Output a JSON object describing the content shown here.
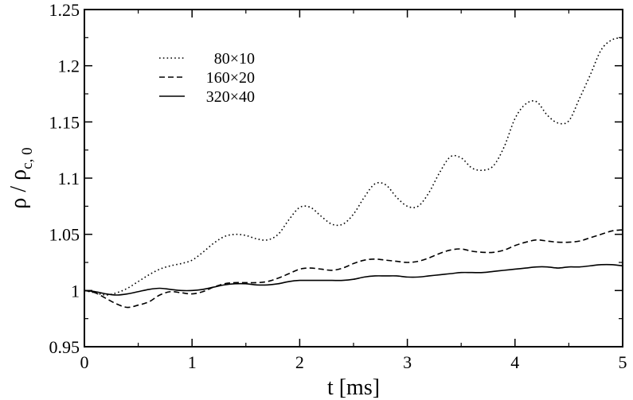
{
  "chart_data": {
    "type": "line",
    "xlabel": "t [ms]",
    "ylabel": "ρ / ρc, 0",
    "ylabel_main": "ρ / ρ",
    "ylabel_sub": "c, 0",
    "xlim": [
      0,
      5
    ],
    "ylim": [
      0.95,
      1.25
    ],
    "x_ticks": [
      0,
      1,
      2,
      3,
      4,
      5
    ],
    "x_tick_labels": [
      "0",
      "1",
      "2",
      "3",
      "4",
      "5"
    ],
    "y_ticks": [
      0.95,
      1,
      1.05,
      1.1,
      1.15,
      1.2,
      1.25
    ],
    "y_tick_labels": [
      "0.95",
      "1",
      "1.05",
      "1.1",
      "1.15",
      "1.2",
      "1.25"
    ],
    "grid": false,
    "legend_position": "top-left",
    "series": [
      {
        "name": "80×10",
        "style": "dotted",
        "color": "#000000",
        "x": [
          0,
          0.1,
          0.2,
          0.3,
          0.4,
          0.5,
          0.6,
          0.7,
          0.8,
          0.9,
          1.0,
          1.1,
          1.2,
          1.3,
          1.4,
          1.5,
          1.6,
          1.7,
          1.8,
          1.9,
          2.0,
          2.1,
          2.2,
          2.3,
          2.4,
          2.5,
          2.6,
          2.7,
          2.8,
          2.9,
          3.0,
          3.1,
          3.2,
          3.3,
          3.4,
          3.5,
          3.6,
          3.7,
          3.8,
          3.9,
          4.0,
          4.1,
          4.2,
          4.3,
          4.4,
          4.5,
          4.6,
          4.7,
          4.8,
          4.9,
          5.0
        ],
        "y": [
          1.0,
          0.998,
          0.996,
          0.998,
          1.002,
          1.008,
          1.014,
          1.019,
          1.022,
          1.024,
          1.027,
          1.034,
          1.042,
          1.048,
          1.05,
          1.049,
          1.046,
          1.045,
          1.05,
          1.063,
          1.074,
          1.074,
          1.066,
          1.059,
          1.059,
          1.068,
          1.083,
          1.095,
          1.094,
          1.083,
          1.075,
          1.075,
          1.087,
          1.105,
          1.119,
          1.118,
          1.109,
          1.107,
          1.111,
          1.128,
          1.153,
          1.166,
          1.168,
          1.156,
          1.149,
          1.151,
          1.171,
          1.192,
          1.214,
          1.223,
          1.225
        ]
      },
      {
        "name": "160×20",
        "style": "dashed",
        "color": "#000000",
        "x": [
          0,
          0.1,
          0.2,
          0.3,
          0.4,
          0.5,
          0.6,
          0.7,
          0.8,
          0.9,
          1.0,
          1.1,
          1.2,
          1.3,
          1.4,
          1.5,
          1.6,
          1.7,
          1.8,
          1.9,
          2.0,
          2.1,
          2.2,
          2.3,
          2.4,
          2.5,
          2.6,
          2.7,
          2.8,
          2.9,
          3.0,
          3.1,
          3.2,
          3.3,
          3.4,
          3.5,
          3.6,
          3.7,
          3.8,
          3.9,
          4.0,
          4.1,
          4.2,
          4.3,
          4.4,
          4.5,
          4.6,
          4.7,
          4.8,
          4.9,
          5.0
        ],
        "y": [
          1.0,
          0.998,
          0.993,
          0.988,
          0.985,
          0.987,
          0.99,
          0.996,
          0.999,
          0.998,
          0.997,
          0.999,
          1.003,
          1.006,
          1.007,
          1.007,
          1.007,
          1.008,
          1.011,
          1.015,
          1.019,
          1.02,
          1.019,
          1.018,
          1.02,
          1.024,
          1.027,
          1.028,
          1.027,
          1.026,
          1.025,
          1.026,
          1.029,
          1.033,
          1.036,
          1.037,
          1.035,
          1.034,
          1.034,
          1.036,
          1.04,
          1.043,
          1.045,
          1.044,
          1.043,
          1.043,
          1.044,
          1.047,
          1.05,
          1.053,
          1.054
        ]
      },
      {
        "name": "320×40",
        "style": "solid",
        "color": "#000000",
        "x": [
          0,
          0.1,
          0.2,
          0.3,
          0.4,
          0.5,
          0.6,
          0.7,
          0.8,
          0.9,
          1.0,
          1.1,
          1.2,
          1.3,
          1.4,
          1.5,
          1.6,
          1.7,
          1.8,
          1.9,
          2.0,
          2.1,
          2.2,
          2.3,
          2.4,
          2.5,
          2.6,
          2.7,
          2.8,
          2.9,
          3.0,
          3.1,
          3.2,
          3.3,
          3.4,
          3.5,
          3.6,
          3.7,
          3.8,
          3.9,
          4.0,
          4.1,
          4.2,
          4.3,
          4.4,
          4.5,
          4.6,
          4.7,
          4.8,
          4.9,
          5.0
        ],
        "y": [
          1.0,
          0.999,
          0.997,
          0.996,
          0.997,
          0.999,
          1.001,
          1.002,
          1.001,
          1.0,
          1.0,
          1.001,
          1.003,
          1.005,
          1.006,
          1.006,
          1.005,
          1.005,
          1.006,
          1.008,
          1.009,
          1.009,
          1.009,
          1.009,
          1.009,
          1.01,
          1.012,
          1.013,
          1.013,
          1.013,
          1.012,
          1.012,
          1.013,
          1.014,
          1.015,
          1.016,
          1.016,
          1.016,
          1.017,
          1.018,
          1.019,
          1.02,
          1.021,
          1.021,
          1.02,
          1.021,
          1.021,
          1.022,
          1.023,
          1.023,
          1.022
        ]
      }
    ]
  }
}
